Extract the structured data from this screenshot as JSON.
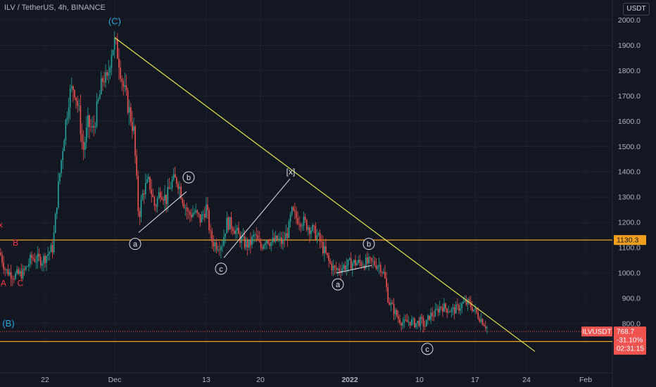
{
  "header": {
    "title": "ILV / TetherUS, 4h, BINANCE",
    "currency": "USDT"
  },
  "colors": {
    "background": "#131722",
    "grid": "#1e222d",
    "up": "#26a69a",
    "down": "#ef5350",
    "trendline": "#e6e64c",
    "level": "#f0a01e",
    "wave_main": "#2aa8e0",
    "wave_prev": "#f23645"
  },
  "chart_data": {
    "type": "candlestick",
    "ylim": [
      670,
      2040
    ],
    "y_ticks": [
      "2000.0",
      "1900.0",
      "1800.0",
      "1700.0",
      "1600.0",
      "1500.0",
      "1400.0",
      "1300.0",
      "1200.0",
      "1100.0",
      "1000.0",
      "900.0",
      "800.0"
    ],
    "x_ticks": [
      "22",
      "Dec",
      "13",
      "20",
      "2022",
      "10",
      "17",
      "24",
      "Feb"
    ],
    "price_path": [
      [
        0,
        1080
      ],
      [
        8,
        1010
      ],
      [
        20,
        990
      ],
      [
        33,
        1000
      ],
      [
        45,
        1060
      ],
      [
        60,
        1050
      ],
      [
        75,
        1100
      ],
      [
        82,
        1320
      ],
      [
        90,
        1520
      ],
      [
        98,
        1700
      ],
      [
        105,
        1740
      ],
      [
        112,
        1640
      ],
      [
        118,
        1480
      ],
      [
        125,
        1590
      ],
      [
        132,
        1560
      ],
      [
        140,
        1680
      ],
      [
        147,
        1780
      ],
      [
        152,
        1750
      ],
      [
        158,
        1880
      ],
      [
        163,
        1910
      ],
      [
        168,
        1860
      ],
      [
        175,
        1740
      ],
      [
        182,
        1660
      ],
      [
        190,
        1560
      ],
      [
        197,
        1220
      ],
      [
        204,
        1330
      ],
      [
        212,
        1360
      ],
      [
        220,
        1260
      ],
      [
        228,
        1330
      ],
      [
        236,
        1290
      ],
      [
        244,
        1360
      ],
      [
        252,
        1370
      ],
      [
        260,
        1290
      ],
      [
        268,
        1230
      ],
      [
        276,
        1240
      ],
      [
        285,
        1210
      ],
      [
        293,
        1260
      ],
      [
        300,
        1130
      ],
      [
        308,
        1110
      ],
      [
        316,
        1120
      ],
      [
        322,
        1200
      ],
      [
        330,
        1190
      ],
      [
        338,
        1150
      ],
      [
        346,
        1120
      ],
      [
        354,
        1110
      ],
      [
        362,
        1150
      ],
      [
        370,
        1100
      ],
      [
        378,
        1140
      ],
      [
        386,
        1120
      ],
      [
        394,
        1130
      ],
      [
        402,
        1120
      ],
      [
        410,
        1170
      ],
      [
        414,
        1240
      ],
      [
        420,
        1220
      ],
      [
        428,
        1210
      ],
      [
        436,
        1190
      ],
      [
        444,
        1170
      ],
      [
        452,
        1140
      ],
      [
        460,
        1090
      ],
      [
        468,
        1040
      ],
      [
        476,
        1010
      ],
      [
        484,
        1020
      ],
      [
        492,
        1030
      ],
      [
        500,
        1040
      ],
      [
        510,
        1040
      ],
      [
        520,
        1040
      ],
      [
        530,
        1040
      ],
      [
        540,
        1030
      ],
      [
        546,
        990
      ],
      [
        552,
        890
      ],
      [
        558,
        860
      ],
      [
        566,
        820
      ],
      [
        574,
        800
      ],
      [
        582,
        810
      ],
      [
        590,
        800
      ],
      [
        598,
        810
      ],
      [
        604,
        790
      ],
      [
        610,
        830
      ],
      [
        618,
        840
      ],
      [
        626,
        870
      ],
      [
        634,
        860
      ],
      [
        642,
        850
      ],
      [
        650,
        860
      ],
      [
        658,
        880
      ],
      [
        666,
        880
      ],
      [
        672,
        860
      ],
      [
        680,
        830
      ],
      [
        688,
        800
      ],
      [
        694,
        778
      ]
    ],
    "last_price": {
      "value": "768.7",
      "change": "-31.10%",
      "countdown": "02:31:15",
      "symbol": "ILVUSDT"
    },
    "levels": [
      {
        "value": "1130.3",
        "price": 1130.3
      },
      {
        "value": "729.2",
        "price": 729.2
      }
    ],
    "trendline": {
      "from": [
        163,
        1930
      ],
      "to": [
        760,
        690
      ]
    },
    "waves": [
      {
        "from": [
          197,
          1160
        ],
        "to": [
          265,
          1322
        ]
      },
      {
        "from": [
          318,
          1060
        ],
        "to": [
          412,
          1372
        ]
      },
      {
        "from": [
          478,
          1000
        ],
        "to": [
          528,
          1030
        ]
      }
    ],
    "annotations": [
      {
        "text": "(C)",
        "x": 163,
        "price": 1995,
        "style": "main"
      },
      {
        "text": "(B)",
        "x": 12,
        "price": 800,
        "style": "main"
      },
      {
        "text": "[x]",
        "x": 413,
        "price": 1400,
        "style": "plain"
      },
      {
        "text": "b",
        "x": 268,
        "price": 1378,
        "style": "circle"
      },
      {
        "text": "a",
        "x": 192,
        "price": 1115,
        "style": "circle"
      },
      {
        "text": "c",
        "x": 314,
        "price": 1017,
        "style": "circle"
      },
      {
        "text": "b",
        "x": 524,
        "price": 1115,
        "style": "circle"
      },
      {
        "text": "a",
        "x": 480,
        "price": 955,
        "style": "circle"
      },
      {
        "text": "c",
        "x": 607,
        "price": 700,
        "style": "circle"
      },
      {
        "text": "B",
        "x": 22,
        "price": 1120,
        "style": "prev"
      },
      {
        "text": "A",
        "x": 5,
        "price": 960,
        "style": "prev"
      },
      {
        "text": "C",
        "x": 29,
        "price": 960,
        "style": "prev"
      },
      {
        "text": "x",
        "x": 1,
        "price": 1190,
        "style": "prev"
      }
    ]
  }
}
